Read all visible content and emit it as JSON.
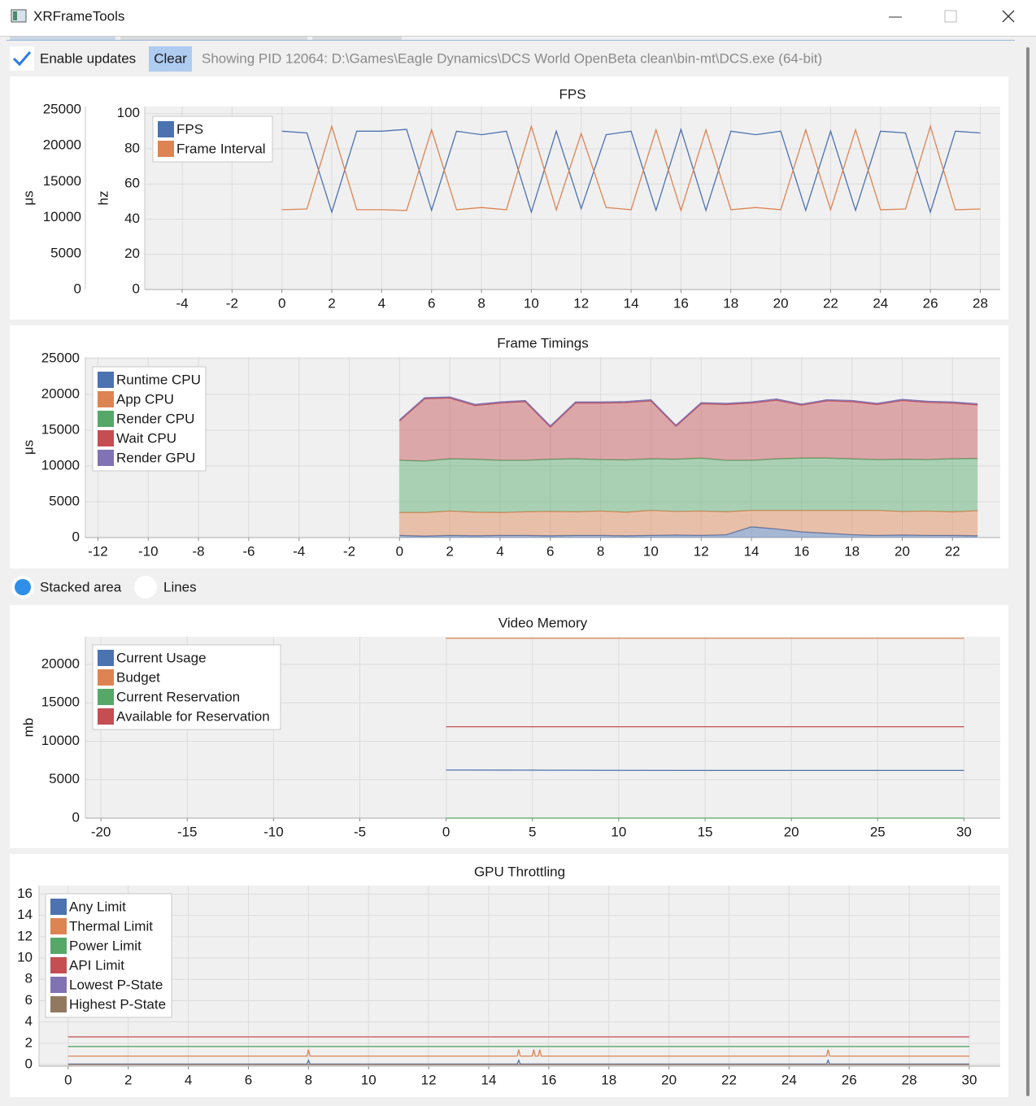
{
  "window": {
    "title": "XRFrameTools"
  },
  "toolbar": {
    "checkbox": "Enable updates",
    "button": "Clear",
    "status": "Showing PID 12064: D:\\Games\\Eagle Dynamics\\DCS World OpenBeta clean\\bin-mt\\DCS.exe (64-bit)"
  },
  "mode_options": [
    "Stacked area",
    "Lines"
  ],
  "chart_data": [
    {
      "type": "line",
      "title": "FPS",
      "ylabel": "μs",
      "y2label": "hz",
      "xlim": [
        -5.5,
        28.8
      ],
      "xticks": [
        -4,
        -2,
        0,
        2,
        4,
        6,
        8,
        10,
        12,
        14,
        16,
        18,
        20,
        22,
        24,
        26,
        28
      ],
      "ylim": [
        0,
        25450
      ],
      "yticks": [
        0,
        5000,
        10000,
        15000,
        20000,
        25000
      ],
      "y2lim": [
        0,
        104
      ],
      "y2ticks": [
        0,
        20,
        40,
        60,
        80,
        100
      ],
      "grid": true,
      "legend": "upper left",
      "x": [
        0,
        1,
        2,
        3,
        4,
        5,
        6,
        7,
        8,
        9,
        10,
        11,
        12,
        13,
        14,
        15,
        16,
        17,
        18,
        19,
        20,
        21,
        22,
        23,
        24,
        25,
        26,
        27,
        28
      ],
      "series": [
        {
          "name": "FPS",
          "color": "#4c72b0",
          "axis": "y2",
          "values": [
            90,
            89,
            44,
            90,
            90,
            91,
            45,
            90,
            88,
            90,
            44,
            90,
            46,
            88,
            90,
            45,
            91,
            45,
            90,
            88,
            90,
            45,
            90,
            45,
            90,
            89,
            44,
            90,
            89
          ]
        },
        {
          "name": "Frame Interval",
          "color": "#dd8452",
          "values": [
            11100,
            11200,
            22700,
            11100,
            11100,
            11000,
            22200,
            11100,
            11400,
            11100,
            22700,
            11100,
            21700,
            11400,
            11100,
            22200,
            11000,
            22200,
            11100,
            11400,
            11100,
            22200,
            11100,
            22200,
            11100,
            11200,
            22700,
            11100,
            11200
          ]
        }
      ]
    },
    {
      "type": "area",
      "stacked": true,
      "title": "Frame Timings",
      "ylabel": "μs",
      "xlim": [
        -12.5,
        23.9
      ],
      "xticks": [
        -12,
        -10,
        -8,
        -6,
        -4,
        -2,
        0,
        2,
        4,
        6,
        8,
        10,
        12,
        14,
        16,
        18,
        20,
        22
      ],
      "ylim": [
        0,
        25230
      ],
      "yticks": [
        0,
        5000,
        10000,
        15000,
        20000,
        25000
      ],
      "grid": true,
      "legend": "upper left",
      "x": [
        0,
        1,
        2,
        3,
        4,
        5,
        6,
        7,
        8,
        9,
        10,
        11,
        12,
        13,
        14,
        15,
        16,
        17,
        18,
        19,
        20,
        21,
        22,
        23
      ],
      "series": [
        {
          "name": "Runtime CPU",
          "color": "#4c72b0",
          "values": [
            300,
            200,
            300,
            250,
            300,
            300,
            250,
            300,
            300,
            250,
            300,
            350,
            300,
            400,
            1500,
            1200,
            800,
            600,
            400,
            300,
            350,
            300,
            300,
            250
          ]
        },
        {
          "name": "App CPU",
          "color": "#dd8452",
          "values": [
            3200,
            3300,
            3400,
            3300,
            3200,
            3300,
            3400,
            3300,
            3400,
            3300,
            3500,
            3300,
            3400,
            3200,
            2300,
            2600,
            3000,
            3200,
            3400,
            3500,
            3300,
            3400,
            3300,
            3500
          ]
        },
        {
          "name": "Render CPU",
          "color": "#55a868",
          "values": [
            7300,
            7200,
            7300,
            7400,
            7300,
            7200,
            7300,
            7400,
            7200,
            7300,
            7200,
            7300,
            7400,
            7200,
            7000,
            7200,
            7300,
            7300,
            7200,
            7100,
            7300,
            7200,
            7400,
            7300
          ]
        },
        {
          "name": "Wait CPU",
          "color": "#c44e52",
          "values": [
            5500,
            8700,
            8500,
            7500,
            8000,
            8200,
            4500,
            7800,
            7900,
            8000,
            8100,
            4600,
            7600,
            7800,
            8000,
            8200,
            7400,
            8000,
            8000,
            7700,
            8200,
            8000,
            7800,
            7500
          ]
        },
        {
          "name": "Render GPU",
          "color": "#8172b3",
          "values": [
            150,
            150,
            150,
            150,
            150,
            150,
            150,
            150,
            150,
            150,
            150,
            150,
            150,
            150,
            150,
            150,
            150,
            150,
            150,
            150,
            150,
            150,
            150,
            150
          ]
        }
      ]
    },
    {
      "type": "line",
      "title": "Video Memory",
      "ylabel": "mb",
      "xlim": [
        -20.9,
        32.1
      ],
      "xticks": [
        -20,
        -15,
        -10,
        -5,
        0,
        5,
        10,
        15,
        20,
        25,
        30
      ],
      "ylim": [
        0,
        23600
      ],
      "yticks": [
        0,
        5000,
        10000,
        15000,
        20000
      ],
      "grid": true,
      "legend": "upper left",
      "x": [
        0,
        15,
        30
      ],
      "series": [
        {
          "name": "Current Usage",
          "color": "#4c72b0",
          "values": [
            6250,
            6200,
            6200
          ]
        },
        {
          "name": "Budget",
          "color": "#dd8452",
          "values": [
            23400,
            23400,
            23400
          ]
        },
        {
          "name": "Current Reservation",
          "color": "#55a868",
          "values": [
            0,
            0,
            0
          ]
        },
        {
          "name": "Available for Reservation",
          "color": "#c44e52",
          "values": [
            11900,
            11900,
            11900
          ]
        }
      ]
    },
    {
      "type": "line",
      "title": "GPU Throttling",
      "xlim": [
        -0.97,
        31.03
      ],
      "xticks": [
        0,
        2,
        4,
        6,
        8,
        10,
        12,
        14,
        16,
        18,
        20,
        22,
        24,
        26,
        28,
        30
      ],
      "ylim": [
        -0.15,
        16.8
      ],
      "yticks": [
        0,
        2,
        4,
        6,
        8,
        10,
        12,
        14,
        16
      ],
      "grid": true,
      "legend": "upper left",
      "x": [
        0,
        7.95,
        8,
        8.05,
        14.95,
        15,
        15.05,
        15.45,
        15.5,
        15.55,
        15.65,
        15.7,
        15.75,
        25.25,
        25.3,
        25.35,
        30
      ],
      "series": [
        {
          "name": "Any Limit",
          "color": "#4c72b0",
          "values": [
            0.05,
            0.05,
            0.4,
            0.05,
            0.05,
            0.4,
            0.05,
            0.05,
            0.05,
            0.05,
            0.05,
            0.05,
            0.05,
            0.05,
            0.4,
            0.05,
            0.05
          ]
        },
        {
          "name": "Thermal Limit",
          "color": "#dd8452",
          "values": [
            0.8,
            0.8,
            1.4,
            0.8,
            0.8,
            1.4,
            0.8,
            0.8,
            1.4,
            0.8,
            0.8,
            1.4,
            0.8,
            0.8,
            1.4,
            0.8,
            0.8
          ]
        },
        {
          "name": "Power Limit",
          "color": "#55a868",
          "values": [
            1.7,
            1.7,
            1.7,
            1.7,
            1.7,
            1.7,
            1.7,
            1.7,
            1.7,
            1.7,
            1.7,
            1.7,
            1.7,
            1.7,
            1.7,
            1.7,
            1.7
          ]
        },
        {
          "name": "API Limit",
          "color": "#c44e52",
          "values": [
            2.6,
            2.6,
            2.6,
            2.6,
            2.6,
            2.6,
            2.6,
            2.6,
            2.6,
            2.6,
            2.6,
            2.6,
            2.6,
            2.6,
            2.6,
            2.6,
            2.6
          ]
        },
        {
          "name": "Lowest P-State",
          "color": "#8172b3",
          "values": [
            0,
            0,
            0,
            0,
            0,
            0,
            0,
            0,
            0,
            0,
            0,
            0,
            0,
            0,
            0,
            0,
            0
          ]
        },
        {
          "name": "Highest P-State",
          "color": "#937860",
          "values": [
            0,
            0,
            0,
            0,
            0,
            0,
            0,
            0,
            0,
            0,
            0,
            0,
            0,
            0,
            0,
            0,
            0
          ]
        }
      ]
    }
  ]
}
